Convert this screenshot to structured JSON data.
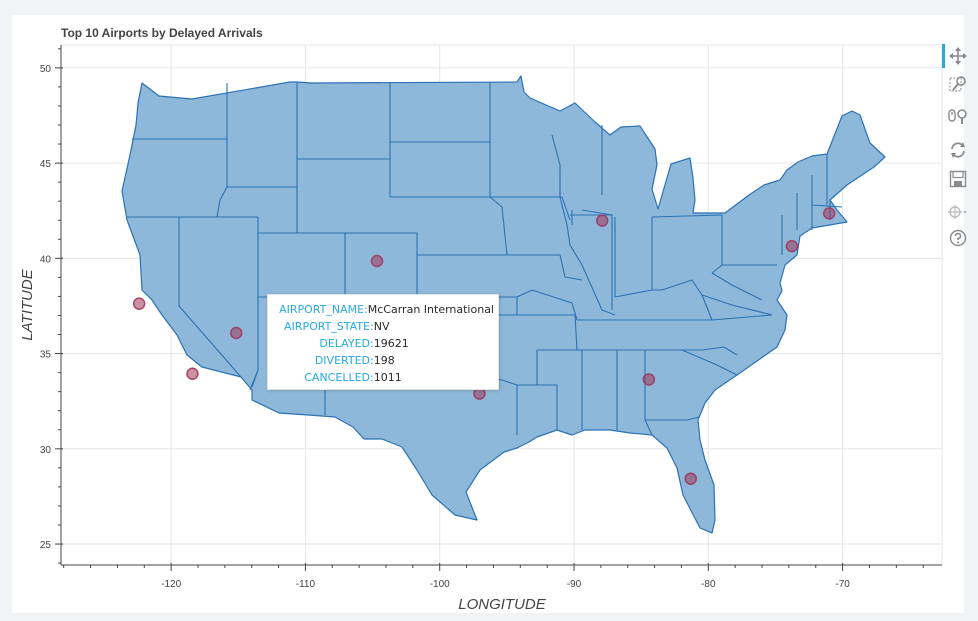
{
  "chart_data": {
    "type": "scatter",
    "title": "Top 10 Airports by Delayed Arrivals",
    "xlabel": "LONGITUDE",
    "ylabel": "LATITUDE",
    "xlim": [
      -128.2,
      -62.6
    ],
    "ylim": [
      23.9,
      51.2
    ],
    "xticks": [
      -120,
      -110,
      -100,
      -90,
      -80,
      -70
    ],
    "yticks": [
      25,
      30,
      35,
      40,
      45,
      50
    ],
    "grid": true,
    "point_color": "#a0385d",
    "map_fill": "#8db8d9",
    "map_stroke": "#2b72b4",
    "points": [
      {
        "x": -122.38,
        "y": 37.62
      },
      {
        "x": -118.41,
        "y": 33.94
      },
      {
        "x": -115.15,
        "y": 36.08
      },
      {
        "x": -104.67,
        "y": 39.86
      },
      {
        "x": -97.04,
        "y": 32.9
      },
      {
        "x": -87.9,
        "y": 41.98
      },
      {
        "x": -84.43,
        "y": 33.64
      },
      {
        "x": -81.31,
        "y": 28.43
      },
      {
        "x": -73.78,
        "y": 40.64
      },
      {
        "x": -71.0,
        "y": 42.36
      }
    ]
  },
  "tooltip": {
    "airport_name_key": "AIRPORT_NAME",
    "airport_name": "McCarran International",
    "airport_state_key": "AIRPORT_STATE",
    "airport_state": "NV",
    "delayed_key": "DELAYED",
    "delayed": "19621",
    "diverted_key": "DIVERTED",
    "diverted": "198",
    "cancelled_key": "CANCELLED",
    "cancelled": "1011"
  },
  "toolbar": {
    "tools": [
      "pan-icon",
      "box-zoom-icon",
      "wheel-zoom-icon",
      "reset-icon",
      "save-icon",
      "crosshair-icon",
      "help-icon"
    ],
    "active_color": "#26aae1"
  }
}
